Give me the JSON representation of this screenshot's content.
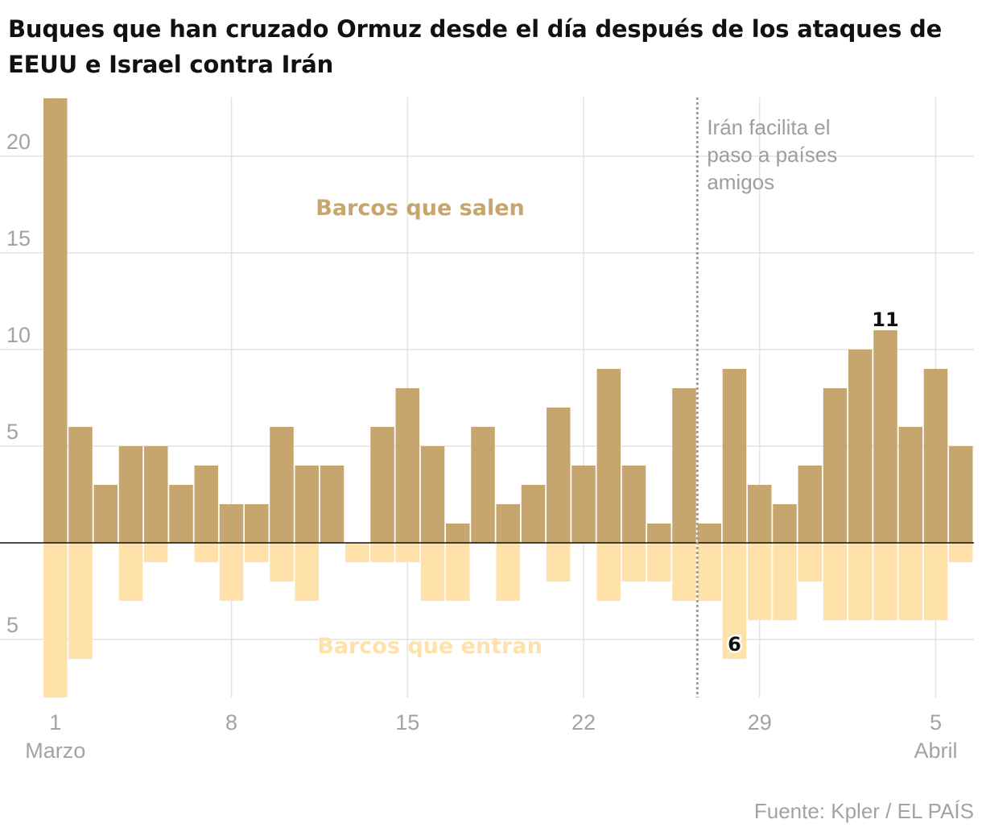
{
  "title": "Buques que han cruzado Ormuz desde el día después de los ataques de EEUU e Israel contra Irán",
  "source": "Fuente: Kpler / EL PAÍS",
  "colors": {
    "salen": "#c6a66e",
    "entran": "#ffe2aa",
    "grid": "#e3e3e3",
    "axis_text": "#a3a3a3",
    "annotation": "#9e9e9e",
    "baseline": "#111111"
  },
  "chart_data": {
    "type": "bar",
    "title": "Buques que han cruzado Ormuz desde el día después de los ataques de EEUU e Israel contra Irán",
    "x_start": "1 Marzo",
    "series": [
      {
        "name": "Barcos que salen",
        "direction": "up",
        "values": [
          23,
          6,
          3,
          5,
          5,
          3,
          4,
          2,
          2,
          6,
          4,
          4,
          0,
          6,
          8,
          5,
          1,
          6,
          2,
          3,
          7,
          4,
          9,
          4,
          1,
          8,
          1,
          9,
          3,
          2,
          4,
          8,
          10,
          11,
          6,
          9,
          5
        ]
      },
      {
        "name": "Barcos que entran",
        "direction": "down",
        "values": [
          8,
          6,
          0,
          3,
          1,
          0,
          1,
          3,
          1,
          2,
          3,
          0,
          1,
          1,
          1,
          3,
          3,
          0,
          3,
          0,
          2,
          0,
          3,
          2,
          2,
          3,
          3,
          6,
          4,
          4,
          2,
          4,
          4,
          4,
          4,
          4,
          1
        ]
      }
    ],
    "series_labels": {
      "salen": "Barcos que salen",
      "entran": "Barcos que entran"
    },
    "y_ticks": [
      {
        "value": 20,
        "label": "20"
      },
      {
        "value": 15,
        "label": "15"
      },
      {
        "value": 10,
        "label": "10"
      },
      {
        "value": 5,
        "label": "5"
      },
      {
        "value": -5,
        "label": "5"
      }
    ],
    "ylim": [
      -8,
      23
    ],
    "x_ticks": [
      {
        "index": 0,
        "label": "1",
        "sublabel": "Marzo"
      },
      {
        "index": 7,
        "label": "8",
        "sublabel": ""
      },
      {
        "index": 14,
        "label": "15",
        "sublabel": ""
      },
      {
        "index": 21,
        "label": "22",
        "sublabel": ""
      },
      {
        "index": 28,
        "label": "29",
        "sublabel": ""
      },
      {
        "index": 35,
        "label": "5",
        "sublabel": "Abril"
      }
    ],
    "event": {
      "index": 25.5,
      "lines": [
        "Irán facilita el",
        "paso a países",
        "amigos"
      ]
    },
    "value_labels": [
      {
        "series": 0,
        "index": 33,
        "label": "11"
      },
      {
        "series": 1,
        "index": 27,
        "label": "6"
      }
    ]
  }
}
